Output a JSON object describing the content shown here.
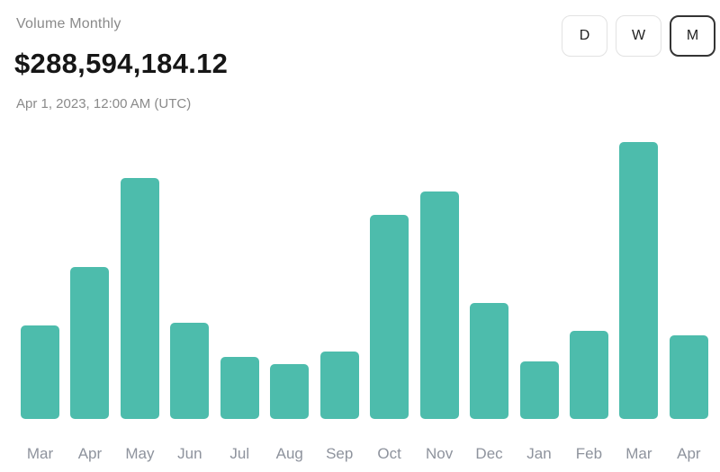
{
  "header": {
    "title": "Volume Monthly",
    "value": "$288,594,184.12",
    "timestamp": "Apr 1, 2023, 12:00 AM (UTC)"
  },
  "range_toggle": {
    "options": [
      {
        "label": "D",
        "selected": false
      },
      {
        "label": "W",
        "selected": false
      },
      {
        "label": "M",
        "selected": true
      }
    ]
  },
  "chart_data": {
    "type": "bar",
    "title": "Volume Monthly",
    "categories": [
      "Mar",
      "Apr",
      "May",
      "Jun",
      "Jul",
      "Aug",
      "Sep",
      "Oct",
      "Nov",
      "Dec",
      "Jan",
      "Feb",
      "Mar",
      "Apr"
    ],
    "values": [
      324,
      526,
      834,
      333,
      215,
      190,
      232,
      707,
      787,
      403,
      198,
      305,
      959,
      288.59
    ],
    "unit": "USD millions (estimated from bar heights; no y-axis shown)",
    "latest_point_value": "$288,594,184.12",
    "latest_point_label": "Apr 1, 2023, 12:00 AM (UTC)",
    "xlabel": "",
    "ylabel": "",
    "ylim": [
      0,
      968
    ],
    "grid": false,
    "legend": false,
    "bar_color": "#4dbcac"
  },
  "colors": {
    "bar": "#4dbcac",
    "axis_label_text": "#8e939d",
    "muted_text": "#8a8a8a",
    "value_text": "#161616",
    "button_border": "#e2e2e2",
    "button_border_selected": "#343434",
    "background": "#ffffff"
  }
}
